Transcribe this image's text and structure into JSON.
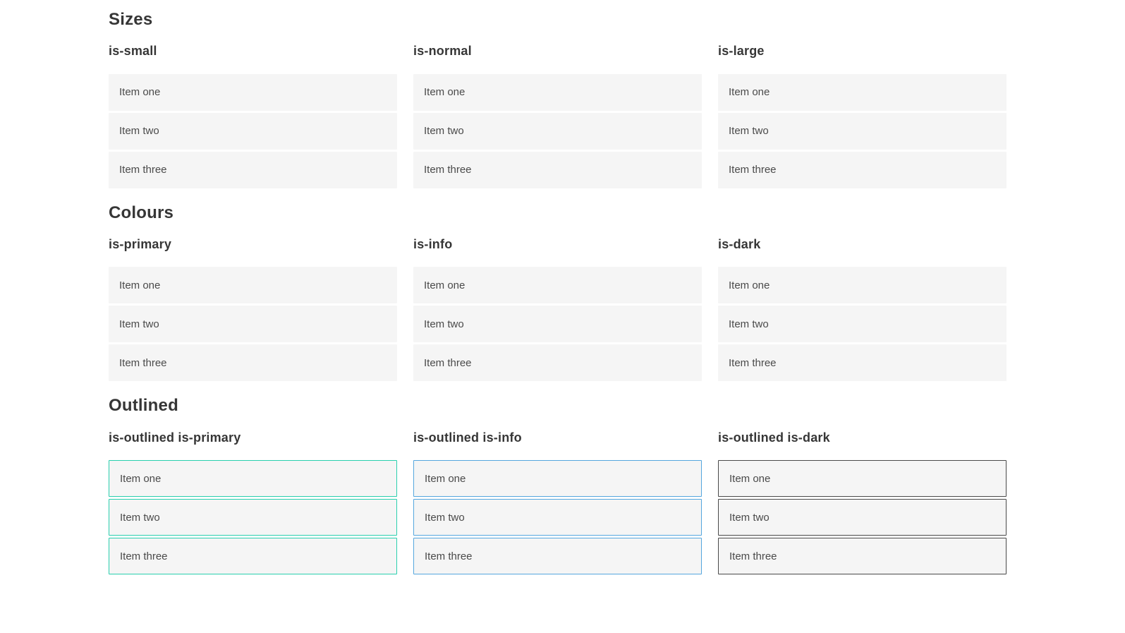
{
  "sections": [
    {
      "title": "Sizes",
      "groups": [
        {
          "label": "is-small",
          "variant": "size-small",
          "items": [
            "Item one",
            "Item two",
            "Item three"
          ]
        },
        {
          "label": "is-normal",
          "variant": "size-normal",
          "items": [
            "Item one",
            "Item two",
            "Item three"
          ]
        },
        {
          "label": "is-large",
          "variant": "size-large",
          "items": [
            "Item one",
            "Item two",
            "Item three"
          ]
        }
      ]
    },
    {
      "title": "Colours",
      "groups": [
        {
          "label": "is-primary",
          "variant": "color-primary",
          "items": [
            "Item one",
            "Item two",
            "Item three"
          ]
        },
        {
          "label": "is-info",
          "variant": "color-info",
          "items": [
            "Item one",
            "Item two",
            "Item three"
          ]
        },
        {
          "label": "is-dark",
          "variant": "color-dark",
          "items": [
            "Item one",
            "Item two",
            "Item three"
          ]
        }
      ]
    },
    {
      "title": "Outlined",
      "groups": [
        {
          "label": "is-outlined is-primary",
          "variant": "outlined-primary",
          "items": [
            "Item one",
            "Item two",
            "Item three"
          ]
        },
        {
          "label": "is-outlined is-info",
          "variant": "outlined-info",
          "items": [
            "Item one",
            "Item two",
            "Item three"
          ]
        },
        {
          "label": "is-outlined is-dark",
          "variant": "outlined-dark",
          "items": [
            "Item one",
            "Item two",
            "Item three"
          ]
        }
      ]
    }
  ],
  "colors": {
    "primary": "#0cc7a8",
    "info": "#3498db",
    "dark": "#363636",
    "light_item_background": "#f5f5f5",
    "item_text": "#4a4a4a",
    "heading_text": "#363636",
    "on_color_text": "#ffffff"
  }
}
